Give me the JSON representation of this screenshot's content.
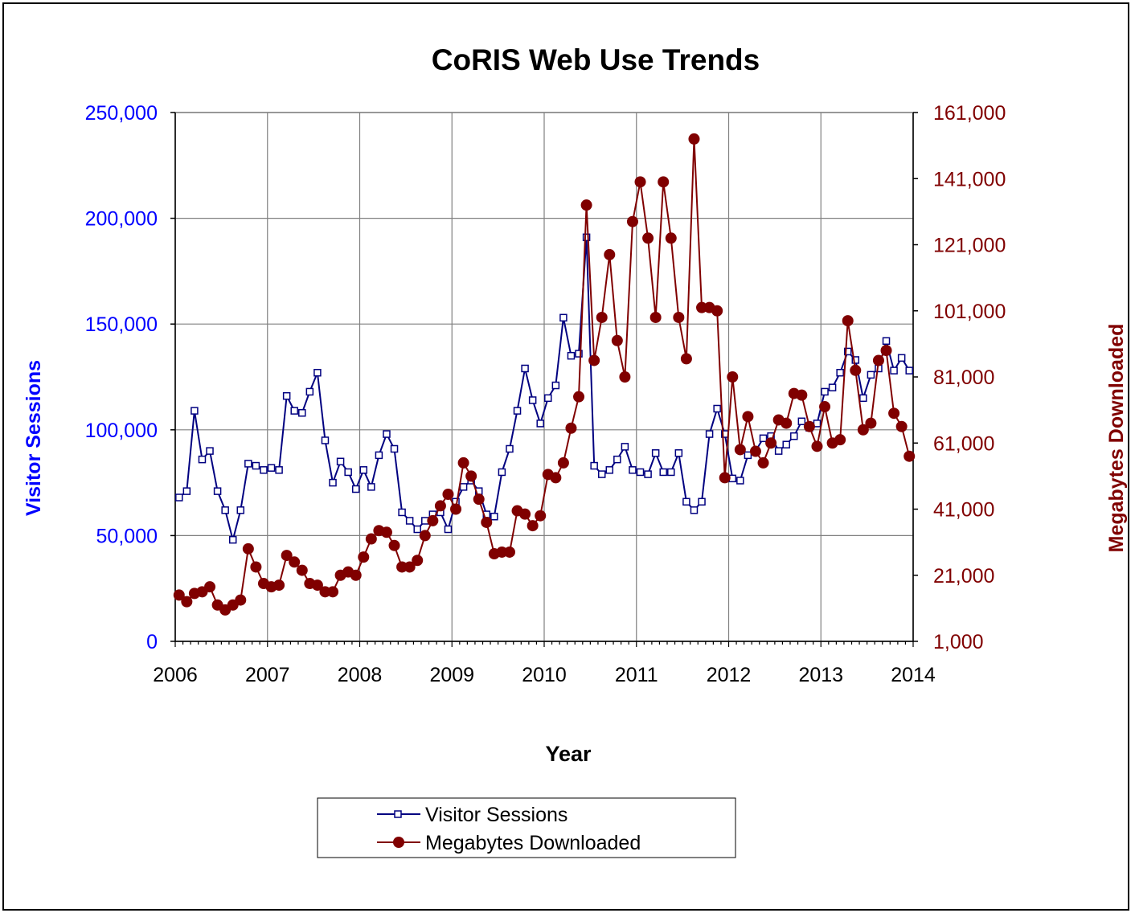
{
  "chart_data": {
    "type": "line",
    "title": "CoRIS Web Use Trends",
    "xlabel": "Year",
    "ylabel": "Visitor Sessions",
    "y2label": "Megabytes Downloaded",
    "xlim": [
      2006,
      2014
    ],
    "ylim": [
      0,
      250000
    ],
    "y2lim": [
      1000,
      161000
    ],
    "x_ticks": [
      "2006",
      "2007",
      "2008",
      "2009",
      "2010",
      "2011",
      "2012",
      "2013",
      "2014"
    ],
    "y_ticks": [
      "0",
      "50,000",
      "100,000",
      "150,000",
      "200,000",
      "250,000"
    ],
    "y2_ticks": [
      "1,000",
      "21,000",
      "41,000",
      "61,000",
      "81,000",
      "101,000",
      "121,000",
      "141,000",
      "161,000"
    ],
    "grid": true,
    "legend_position": "bottom",
    "colors": {
      "sessions": "#000080",
      "megabytes": "#800000",
      "left_axis": "#0000ff",
      "right_axis": "#800000"
    },
    "series": [
      {
        "name": "Visitor Sessions",
        "axis": "left",
        "marker": "square-open",
        "x_start": 2006.0,
        "x_step_months": 1,
        "values": [
          68000,
          71000,
          109000,
          86000,
          90000,
          71000,
          62000,
          48000,
          62000,
          84000,
          83000,
          81000,
          82000,
          81000,
          116000,
          109000,
          108000,
          118000,
          127000,
          95000,
          75000,
          85000,
          80000,
          72000,
          81000,
          73000,
          88000,
          98000,
          91000,
          61000,
          57000,
          53000,
          57000,
          60000,
          61000,
          53000,
          66000,
          73000,
          76000,
          71000,
          60000,
          59000,
          80000,
          91000,
          109000,
          129000,
          114000,
          103000,
          115000,
          121000,
          153000,
          135000,
          136000,
          191000,
          83000,
          79000,
          81000,
          86000,
          92000,
          81000,
          80000,
          79000,
          89000,
          80000,
          80000,
          89000,
          66000,
          62000,
          66000,
          98000,
          110000,
          98000,
          77000,
          76000,
          88000,
          90000,
          96000,
          97000,
          90000,
          93000,
          97000,
          104000,
          101000,
          103000,
          118000,
          120000,
          127000,
          137000,
          133000,
          115000,
          126000,
          129000,
          142000,
          128000,
          134000,
          128000
        ]
      },
      {
        "name": "Megabytes Downloaded",
        "axis": "right",
        "marker": "circle-filled",
        "x_start": 2006.0,
        "x_step_months": 1,
        "values": [
          15000,
          13000,
          15500,
          16000,
          17500,
          12000,
          10500,
          12000,
          13500,
          29000,
          23500,
          18500,
          17500,
          18000,
          27000,
          25000,
          22500,
          18500,
          18000,
          16000,
          16000,
          21000,
          22000,
          21000,
          26500,
          32000,
          34500,
          34000,
          30000,
          23500,
          23500,
          25500,
          33000,
          37500,
          42000,
          45500,
          41000,
          55000,
          51000,
          44000,
          37000,
          27500,
          28000,
          28000,
          40500,
          39500,
          36000,
          39000,
          51500,
          50500,
          55000,
          65500,
          75000,
          133000,
          86000,
          99000,
          118000,
          92000,
          81000,
          128000,
          140000,
          123000,
          99000,
          140000,
          123000,
          99000,
          86500,
          153000,
          102000,
          102000,
          101000,
          50500,
          81000,
          59000,
          69000,
          58500,
          55000,
          61000,
          68000,
          67000,
          76000,
          75500,
          66000,
          60000,
          72000,
          61000,
          62000,
          98000,
          83000,
          65000,
          67000,
          86000,
          89000,
          70000,
          66000,
          57000
        ]
      }
    ]
  }
}
